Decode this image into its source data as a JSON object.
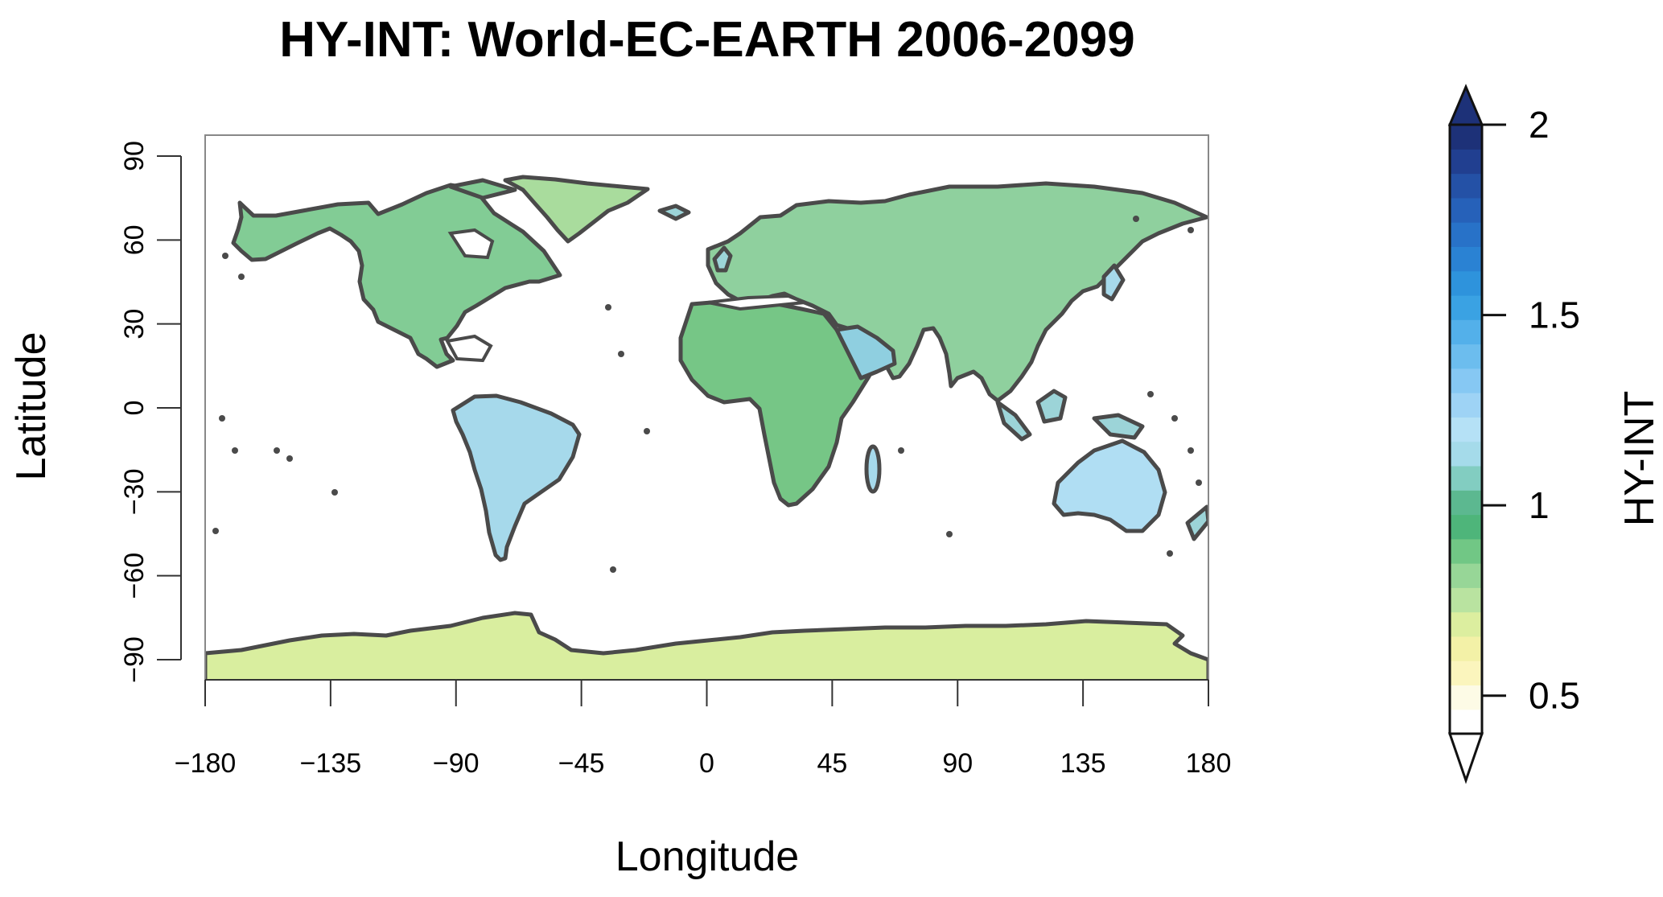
{
  "title": "HY-INT: World-EC-EARTH 2006-2099",
  "xlabel": "Longitude",
  "ylabel": "Latitude",
  "colorbar_label": "HY-INT",
  "x_ticks": [
    "-180",
    "-135",
    "-90",
    "-45",
    "0",
    "45",
    "90",
    "135",
    "180"
  ],
  "y_ticks": [
    "90",
    "60",
    "30",
    "0",
    "-30",
    "-60",
    "-90"
  ],
  "colorbar_ticks": [
    "2",
    "1.5",
    "1",
    "0.5"
  ],
  "map": {
    "lon_range": [
      -180,
      180
    ],
    "lat_range": [
      -90,
      90
    ],
    "coastline_color": "#4a4a4a",
    "colorbar_range": [
      0.4,
      2.0
    ],
    "colorbar_extends": "both",
    "palette": [
      "#ffffff",
      "#fdfbe6",
      "#fbf5bd",
      "#f3f1a7",
      "#dcee9f",
      "#b9e3a0",
      "#97d697",
      "#71c785",
      "#4eb57a",
      "#5cb890",
      "#82cdc1",
      "#a5dbea",
      "#b5e1f6",
      "#9ed3f5",
      "#86c8f3",
      "#6cbdee",
      "#53b0ea",
      "#3aa2e3",
      "#2e93dc",
      "#2a82d3",
      "#2872c8",
      "#2661b9",
      "#2451a6",
      "#213f90",
      "#1d3178"
    ]
  }
}
